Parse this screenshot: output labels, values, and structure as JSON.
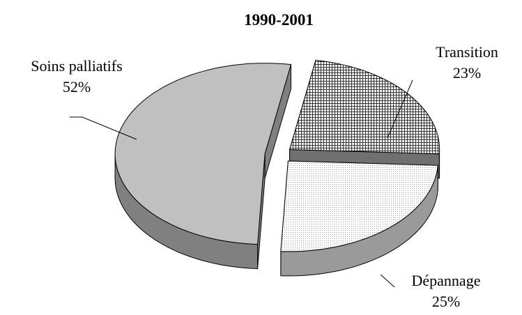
{
  "chart_data": {
    "type": "pie",
    "title": "1990-2001",
    "categories": [
      "Soins palliatifs",
      "Transition",
      "Dépannage"
    ],
    "values": [
      52,
      23,
      25
    ],
    "value_labels": [
      "52%",
      "23%",
      "25%"
    ],
    "colors": [
      "#c0c0c0",
      "#ffffff",
      "#ffffff"
    ]
  }
}
